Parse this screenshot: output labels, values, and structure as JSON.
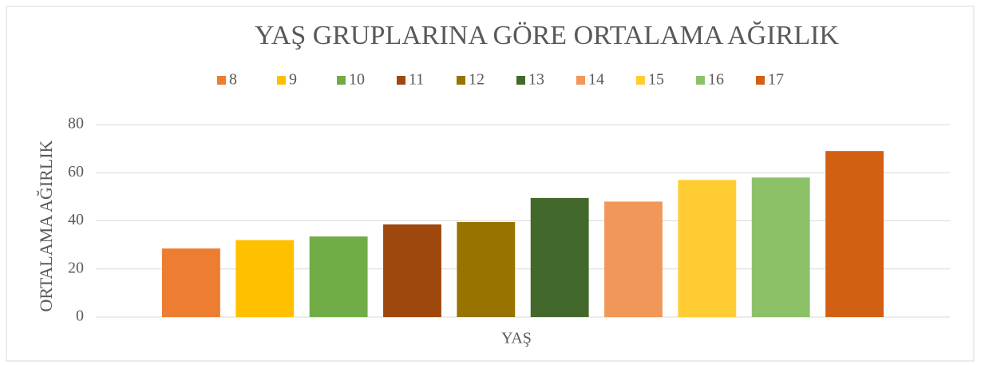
{
  "chart_data": {
    "type": "bar",
    "title": "YAŞ GRUPLARINA GÖRE ORTALAMA AĞIRLIK",
    "x_label": "YAŞ",
    "y_label": "ORTALAMA AĞIRLIK",
    "series": [
      {
        "name": "8",
        "color": "#ED7D31",
        "values": [
          28.5
        ]
      },
      {
        "name": "9",
        "color": "#FFC000",
        "values": [
          32
        ]
      },
      {
        "name": "10",
        "color": "#70AD47",
        "values": [
          33.5
        ]
      },
      {
        "name": "11",
        "color": "#9E480E",
        "values": [
          38.5
        ]
      },
      {
        "name": "12",
        "color": "#997300",
        "values": [
          39.5
        ]
      },
      {
        "name": "13",
        "color": "#43682B",
        "values": [
          49.5
        ]
      },
      {
        "name": "14",
        "color": "#F1975A",
        "values": [
          48
        ]
      },
      {
        "name": "15",
        "color": "#FFCD33",
        "values": [
          57
        ]
      },
      {
        "name": "16",
        "color": "#8CC168",
        "values": [
          58
        ]
      },
      {
        "name": "17",
        "color": "#D26012",
        "values": [
          69
        ]
      }
    ],
    "ylim": [
      0,
      80
    ],
    "yticks": [
      0,
      20,
      40,
      60,
      80
    ],
    "grid": true,
    "legend": "top"
  }
}
